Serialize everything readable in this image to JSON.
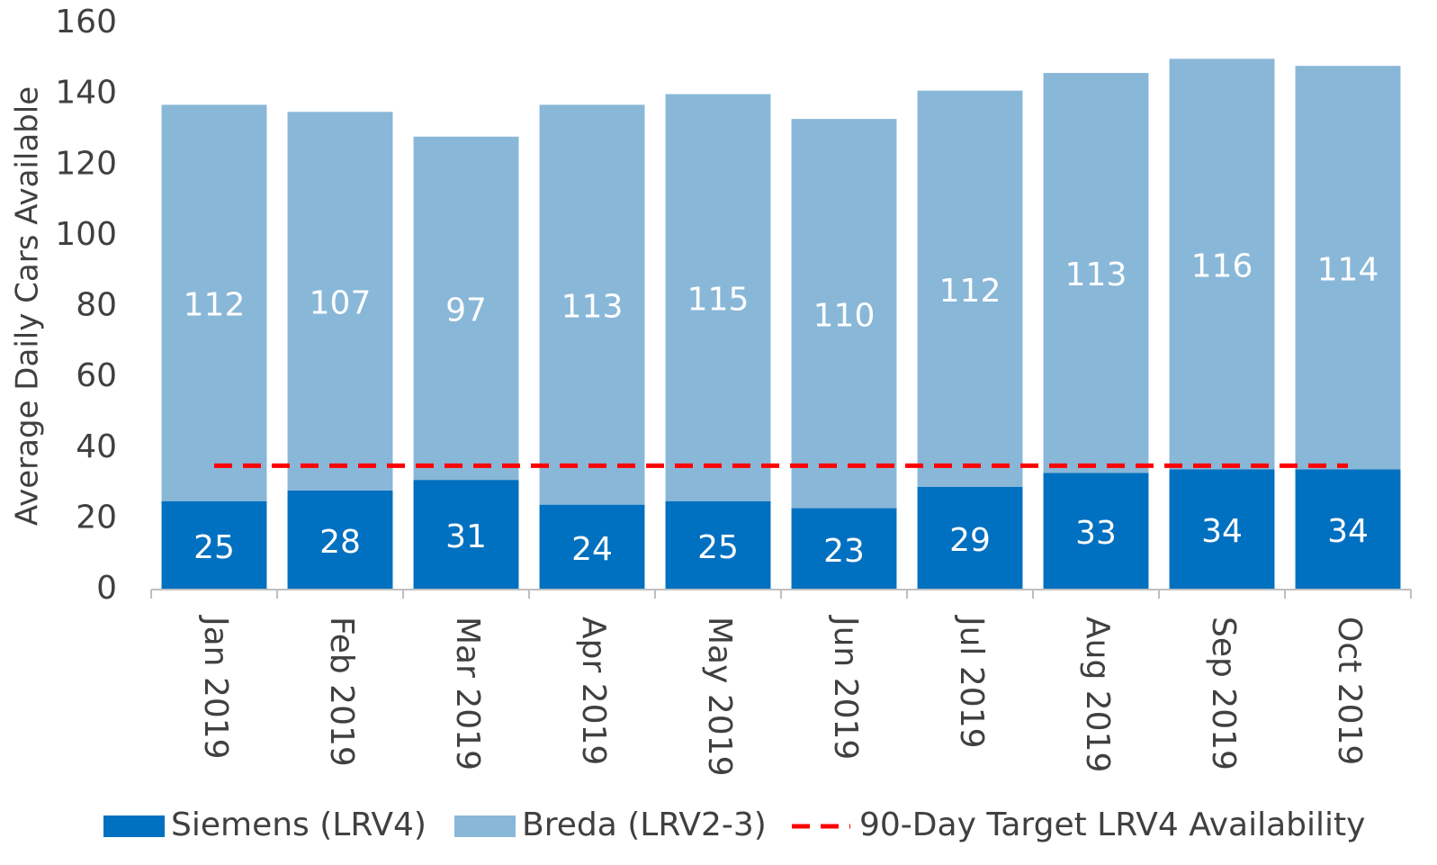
{
  "chart_data": {
    "type": "bar",
    "stacked": true,
    "y_label": "Average Daily Cars Available",
    "categories": [
      "Jan 2019",
      "Feb 2019",
      "Mar 2019",
      "Apr 2019",
      "May 2019",
      "Jun 2019",
      "Jul 2019",
      "Aug 2019",
      "Sep 2019",
      "Oct 2019"
    ],
    "series": [
      {
        "name": "Siemens (LRV4)",
        "color": "#0070c0",
        "type": "bar",
        "values": [
          25,
          28,
          31,
          24,
          25,
          23,
          29,
          33,
          34,
          34
        ]
      },
      {
        "name": "Breda (LRV2-3)",
        "color": "#89b7d8",
        "type": "bar",
        "values": [
          112,
          107,
          97,
          113,
          115,
          110,
          112,
          113,
          116,
          114
        ]
      },
      {
        "name": "90-Day Target LRV4 Availability",
        "color": "#ff0000",
        "type": "line",
        "dashed": true,
        "values": [
          35,
          35,
          35,
          35,
          35,
          35,
          35,
          35,
          35,
          35
        ]
      }
    ],
    "ylim": [
      0,
      160
    ],
    "yticks": [
      0,
      20,
      40,
      60,
      80,
      100,
      120,
      140,
      160
    ],
    "grid": false,
    "legend": "bottom"
  }
}
